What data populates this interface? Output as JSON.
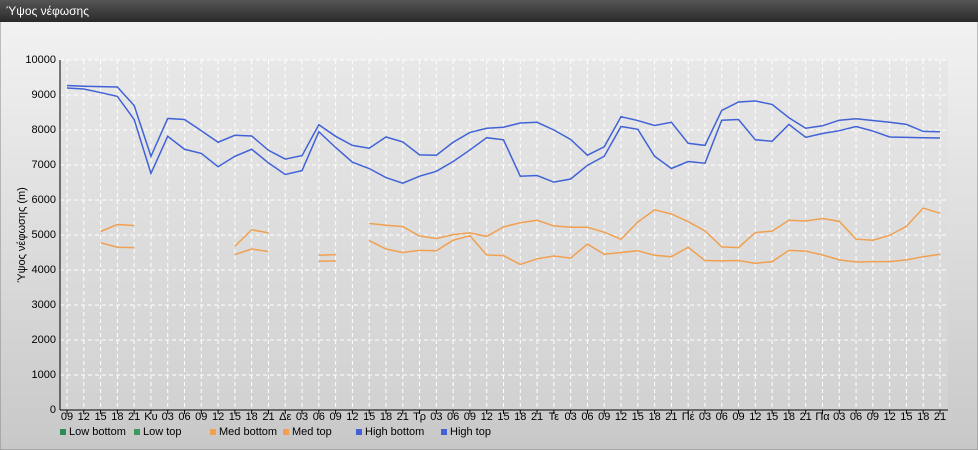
{
  "chart_data": {
    "type": "line",
    "title": "Ύψος νέφωσης",
    "y_label": "Ύψος νέφωσης (m)",
    "categories": [
      "09",
      "12",
      "15",
      "18",
      "21",
      "Κυ",
      "03",
      "06",
      "09",
      "12",
      "15",
      "18",
      "21",
      "Δε",
      "03",
      "06",
      "09",
      "12",
      "15",
      "18",
      "21",
      "Τρ",
      "03",
      "06",
      "09",
      "12",
      "15",
      "18",
      "21",
      "Τε",
      "03",
      "06",
      "09",
      "12",
      "15",
      "18",
      "21",
      "Πέ",
      "03",
      "06",
      "09",
      "12",
      "15",
      "18",
      "21",
      "Πα",
      "03",
      "06",
      "09",
      "12",
      "15",
      "18",
      "21"
    ],
    "series": [
      {
        "name": "Low bottom",
        "color": "#2e8b57",
        "values": [
          null,
          null,
          null,
          null,
          null,
          null,
          null,
          null,
          null,
          null,
          null,
          null,
          null,
          null,
          null,
          null,
          null,
          null,
          null,
          null,
          null,
          null,
          null,
          null,
          null,
          null,
          null,
          null,
          null,
          null,
          null,
          null,
          null,
          null,
          null,
          null,
          null,
          null,
          null,
          null,
          null,
          null,
          null,
          null,
          null,
          null,
          null,
          null,
          null,
          null,
          null,
          null,
          null
        ]
      },
      {
        "name": "Low top",
        "color": "#3a9a5e",
        "values": [
          null,
          null,
          null,
          null,
          null,
          null,
          null,
          null,
          null,
          null,
          null,
          null,
          null,
          null,
          null,
          null,
          null,
          null,
          null,
          null,
          null,
          null,
          null,
          null,
          null,
          null,
          null,
          null,
          null,
          null,
          null,
          null,
          null,
          null,
          null,
          null,
          null,
          null,
          null,
          null,
          null,
          null,
          null,
          null,
          null,
          null,
          null,
          null,
          null,
          null,
          null,
          null,
          null
        ]
      },
      {
        "name": "Med bottom",
        "color": "#f0a050",
        "values": [
          null,
          null,
          4780,
          4650,
          4640,
          null,
          null,
          null,
          null,
          null,
          4440,
          4600,
          4530,
          null,
          null,
          4250,
          4260,
          null,
          4840,
          4600,
          4500,
          4560,
          4550,
          4850,
          4980,
          4430,
          4410,
          4160,
          4320,
          4400,
          4340,
          4740,
          4450,
          4500,
          4550,
          4420,
          4380,
          4650,
          4270,
          4260,
          4270,
          4190,
          4240,
          4560,
          4540,
          4430,
          4290,
          4230,
          4240,
          4240,
          4290,
          4380,
          4450
        ]
      },
      {
        "name": "Med top",
        "color": "#f0a050",
        "values": [
          null,
          null,
          5100,
          5300,
          5270,
          null,
          null,
          null,
          null,
          null,
          4680,
          5150,
          5060,
          null,
          null,
          4420,
          4440,
          null,
          5330,
          5280,
          5240,
          4970,
          4900,
          5010,
          5060,
          4960,
          5230,
          5350,
          5420,
          5260,
          5220,
          5220,
          5080,
          4880,
          5370,
          5720,
          5600,
          5380,
          5120,
          4660,
          4640,
          5070,
          5110,
          5420,
          5400,
          5470,
          5390,
          4880,
          4850,
          4990,
          5250,
          5770,
          5620
        ]
      },
      {
        "name": "High bottom",
        "color": "#4062d6",
        "values": [
          9200,
          9170,
          9070,
          8960,
          8300,
          6760,
          7820,
          7450,
          7330,
          6950,
          7250,
          7450,
          7060,
          6730,
          6840,
          7950,
          7500,
          7080,
          6900,
          6640,
          6480,
          6680,
          6820,
          7100,
          7430,
          7780,
          7720,
          6680,
          6700,
          6510,
          6600,
          6990,
          7250,
          8100,
          8020,
          7250,
          6900,
          7100,
          7050,
          8280,
          8300,
          7720,
          7680,
          8160,
          7790,
          7900,
          7980,
          8100,
          7970,
          7800,
          7790,
          7780,
          7770
        ]
      },
      {
        "name": "High top",
        "color": "#4062d6",
        "values": [
          9270,
          9250,
          9240,
          9230,
          8700,
          7250,
          8330,
          8300,
          7980,
          7650,
          7850,
          7830,
          7420,
          7170,
          7270,
          8150,
          7820,
          7560,
          7480,
          7800,
          7660,
          7290,
          7280,
          7650,
          7930,
          8050,
          8080,
          8200,
          8220,
          8000,
          7730,
          7280,
          7520,
          8380,
          8270,
          8130,
          8220,
          7620,
          7560,
          8560,
          8800,
          8830,
          8730,
          8350,
          8050,
          8120,
          8280,
          8320,
          8270,
          8220,
          8160,
          7960,
          7950
        ]
      }
    ],
    "ylim": [
      0,
      10000
    ],
    "yticks": [
      0,
      1000,
      2000,
      3000,
      4000,
      5000,
      6000,
      7000,
      8000,
      9000,
      10000
    ],
    "grid": true
  }
}
